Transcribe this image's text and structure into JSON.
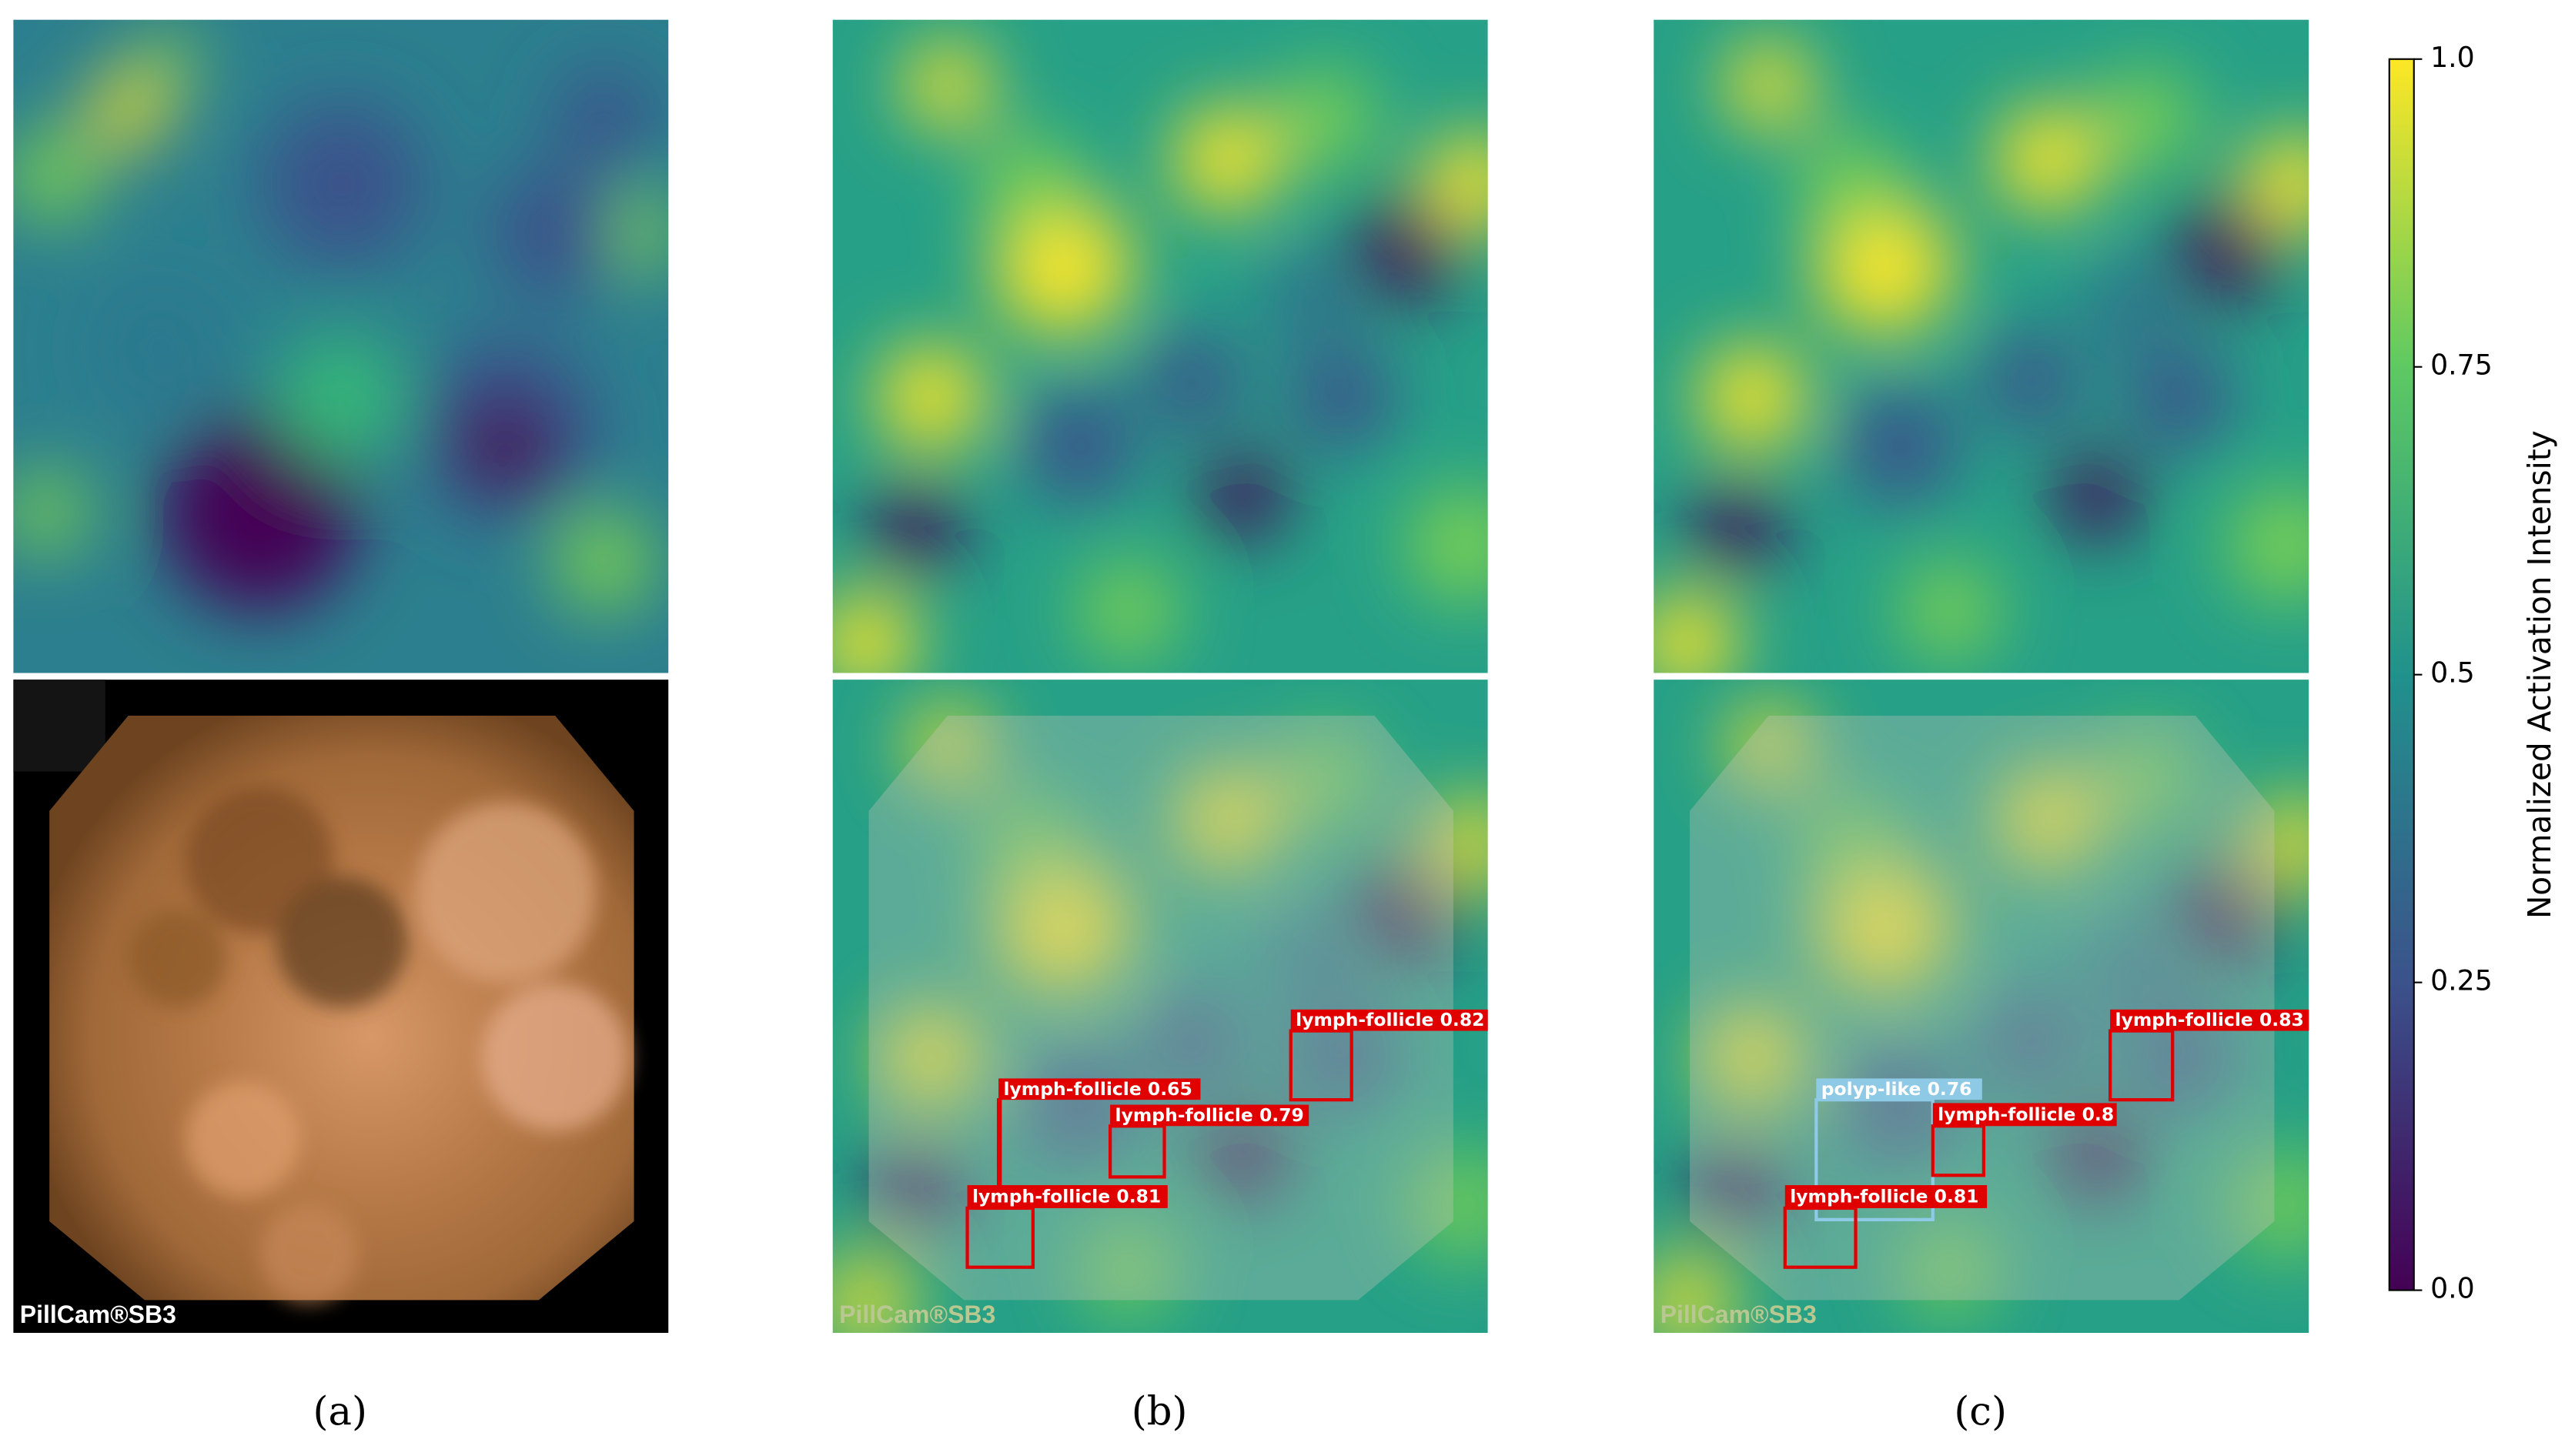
{
  "panels": [
    {
      "caption": "(a)",
      "watermark": "PillCam®SB3"
    },
    {
      "caption": "(b)",
      "watermark": "PillCam®SB3",
      "detections": [
        "lymph-follicle 0.82",
        "lymph-follicle 0.65",
        "lymph-follicle 0.79",
        "lymph-follicle 0.81"
      ]
    },
    {
      "caption": "(c)",
      "watermark": "PillCam®SB3",
      "detections": [
        "lymph-follicle 0.83",
        "polyp-like 0.76",
        "lymph-follicle 0.8",
        "lymph-follicle 0.81"
      ]
    }
  ],
  "colorbar": {
    "label": "Normalized Activation Intensity",
    "lim": [
      0,
      1
    ],
    "ticks": [
      {
        "value": 0,
        "label": "0.0"
      },
      0.25,
      0.5,
      0.75,
      {
        "value": 1,
        "label": "1.0"
      }
    ]
  }
}
